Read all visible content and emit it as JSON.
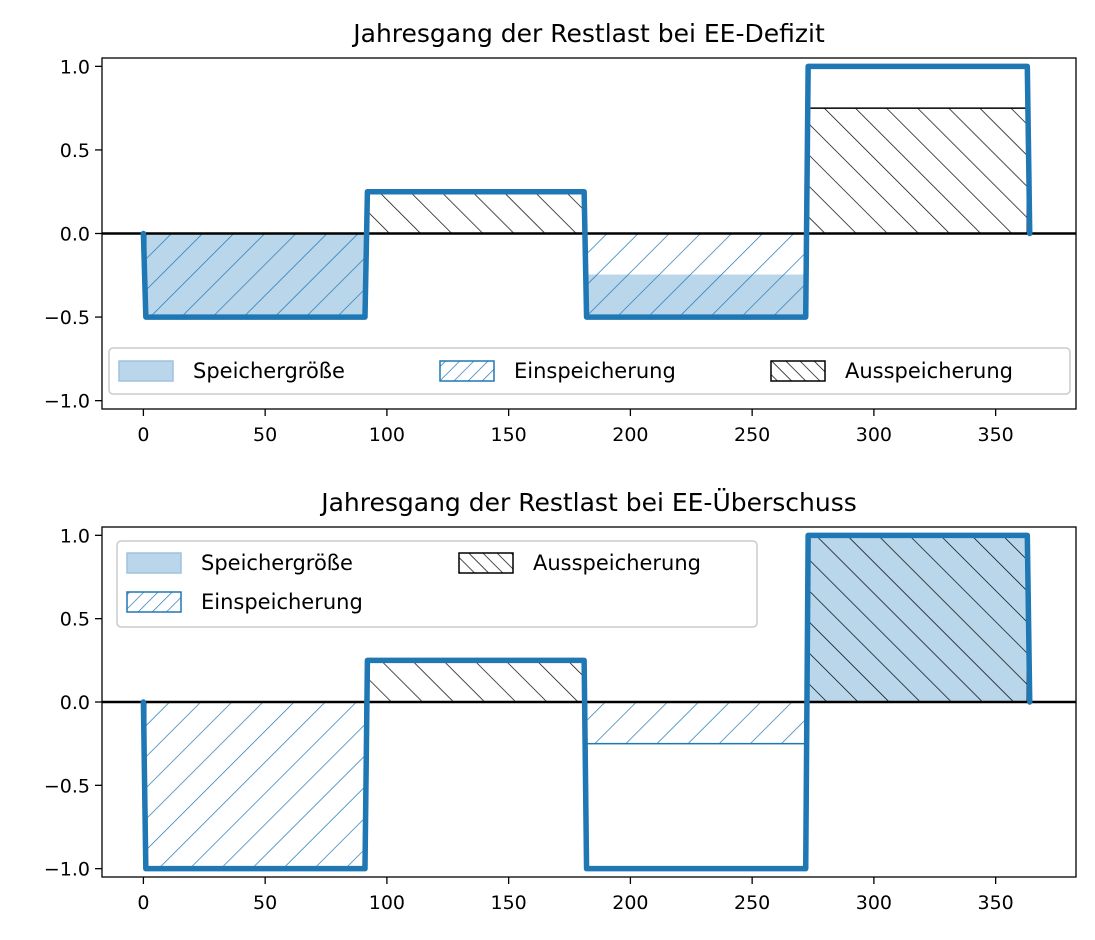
{
  "colors": {
    "line": "#1f77b4",
    "fill": "#bad6ea",
    "hatch_out": "#000000",
    "zero_line": "#000000",
    "legend_border": "#cccccc"
  },
  "chart_data": [
    {
      "type": "line",
      "title": "Jahresgang der Restlast bei EE-Defizit",
      "xlabel": "",
      "ylabel": "",
      "xlim": [
        -17,
        383
      ],
      "ylim": [
        -1.05,
        1.05
      ],
      "xticks": [
        0,
        50,
        100,
        150,
        200,
        250,
        300,
        350
      ],
      "xtick_labels": [
        "0",
        "50",
        "100",
        "150",
        "200",
        "250",
        "300",
        "350"
      ],
      "yticks": [
        1.0,
        0.5,
        0.0,
        -0.5,
        -1.0
      ],
      "ytick_labels": [
        "1.0",
        "0.5",
        "0.0",
        "−0.5",
        "−1.0"
      ],
      "grid": false,
      "legend_position": "lower center",
      "legend_columns": 3,
      "legend": [
        {
          "label": "Speichergröße",
          "style": "fill"
        },
        {
          "label": "Einspeicherung",
          "style": "hatch-in"
        },
        {
          "label": "Ausspeicherung",
          "style": "hatch-out"
        }
      ],
      "series": [
        {
          "x": [
            0,
            1,
            91,
            92,
            181,
            182,
            272,
            273,
            363,
            364
          ],
          "y": [
            0,
            -0.5,
            -0.5,
            0.25,
            0.25,
            -0.5,
            -0.5,
            1.0,
            1.0,
            0
          ]
        }
      ],
      "regions": [
        {
          "style": "fill",
          "x": [
            1,
            91
          ],
          "y": [
            -0.5,
            0
          ]
        },
        {
          "style": "hatch-in",
          "x": [
            1,
            91
          ],
          "y": [
            -0.5,
            0
          ]
        },
        {
          "style": "hatch-out",
          "x": [
            92,
            181
          ],
          "y": [
            0,
            0.25
          ]
        },
        {
          "style": "fill",
          "x": [
            182,
            272
          ],
          "y": [
            -0.5,
            -0.25
          ]
        },
        {
          "style": "hatch-in",
          "x": [
            182,
            272
          ],
          "y": [
            -0.5,
            0
          ]
        },
        {
          "style": "hatch-out",
          "x": [
            273,
            363
          ],
          "y": [
            0,
            0.75
          ]
        }
      ]
    },
    {
      "type": "line",
      "title": "Jahresgang der Restlast bei EE-Überschuss",
      "xlabel": "",
      "ylabel": "",
      "xlim": [
        -17,
        383
      ],
      "ylim": [
        -1.05,
        1.05
      ],
      "xticks": [
        0,
        50,
        100,
        150,
        200,
        250,
        300,
        350
      ],
      "xtick_labels": [
        "0",
        "50",
        "100",
        "150",
        "200",
        "250",
        "300",
        "350"
      ],
      "yticks": [
        1.0,
        0.5,
        0.0,
        -0.5,
        -1.0
      ],
      "ytick_labels": [
        "1.0",
        "0.5",
        "0.0",
        "−0.5",
        "−1.0"
      ],
      "grid": false,
      "legend_position": "upper left",
      "legend_columns": 2,
      "legend": [
        {
          "label": "Speichergröße",
          "style": "fill"
        },
        {
          "label": "Einspeicherung",
          "style": "hatch-in"
        },
        {
          "label": "Ausspeicherung",
          "style": "hatch-out"
        }
      ],
      "series": [
        {
          "x": [
            0,
            1,
            91,
            92,
            181,
            182,
            272,
            273,
            363,
            364
          ],
          "y": [
            0,
            -1.0,
            -1.0,
            0.25,
            0.25,
            -1.0,
            -1.0,
            1.0,
            1.0,
            0
          ]
        }
      ],
      "regions": [
        {
          "style": "hatch-in",
          "x": [
            1,
            91
          ],
          "y": [
            -1.0,
            0
          ]
        },
        {
          "style": "hatch-out",
          "x": [
            92,
            181
          ],
          "y": [
            0,
            0.25
          ]
        },
        {
          "style": "hatch-in",
          "x": [
            182,
            272
          ],
          "y": [
            -0.25,
            0
          ]
        },
        {
          "style": "fill",
          "x": [
            273,
            363
          ],
          "y": [
            0,
            1.0
          ]
        },
        {
          "style": "hatch-out",
          "x": [
            273,
            363
          ],
          "y": [
            0,
            1.0
          ]
        }
      ]
    }
  ]
}
